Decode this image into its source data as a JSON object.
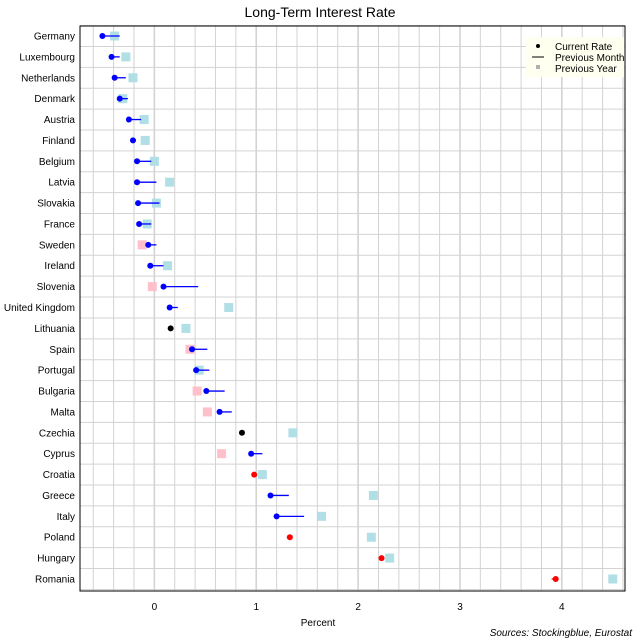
{
  "chart_data": {
    "type": "dot",
    "title": "Long-Term Interest Rate",
    "xlabel": "Percent",
    "source": "Sources: Stockingblue, Eurostat",
    "xlim": [
      -0.73,
      4.62
    ],
    "xticks": [
      0,
      1,
      2,
      3,
      4
    ],
    "grid": true,
    "legend_position": "top-right",
    "legend": [
      "Current Rate",
      "Previous Month",
      "Previous Year"
    ],
    "colors": {
      "decrease": "#0000ff",
      "increase": "#ff0000",
      "unchanged": "#000000",
      "prev_year_higher": "#b0dfe5",
      "prev_year_lower": "#ffc0cb",
      "grid": "#d3d3d3"
    },
    "categories": [
      "Germany",
      "Luxembourg",
      "Netherlands",
      "Denmark",
      "Austria",
      "Finland",
      "Belgium",
      "Latvia",
      "Slovakia",
      "France",
      "Sweden",
      "Ireland",
      "Slovenia",
      "United Kingdom",
      "Lithuania",
      "Spain",
      "Portugal",
      "Bulgaria",
      "Malta",
      "Czechia",
      "Cyprus",
      "Croatia",
      "Greece",
      "Italy",
      "Poland",
      "Hungary",
      "Romania"
    ],
    "series": [
      {
        "name": "Current Rate",
        "values": [
          -0.51,
          -0.42,
          -0.39,
          -0.34,
          -0.25,
          -0.21,
          -0.17,
          -0.17,
          -0.16,
          -0.15,
          -0.06,
          -0.04,
          0.09,
          0.15,
          0.16,
          0.37,
          0.41,
          0.51,
          0.64,
          0.86,
          0.95,
          0.98,
          1.14,
          1.2,
          1.33,
          2.23,
          3.94
        ]
      },
      {
        "name": "Previous Month",
        "values": [
          -0.34,
          -0.34,
          -0.28,
          -0.26,
          -0.13,
          -0.18,
          -0.03,
          0.02,
          0.05,
          -0.03,
          0.02,
          0.09,
          0.43,
          0.23,
          0.16,
          0.52,
          0.54,
          0.69,
          0.76,
          0.86,
          1.06,
          0.96,
          1.32,
          1.47,
          1.3,
          2.2,
          3.9
        ]
      },
      {
        "name": "Previous Year",
        "values": [
          -0.39,
          -0.28,
          -0.21,
          -0.31,
          -0.1,
          -0.09,
          0.0,
          0.15,
          0.02,
          -0.07,
          -0.12,
          0.13,
          -0.02,
          0.73,
          0.31,
          0.35,
          0.44,
          0.42,
          0.52,
          1.36,
          0.66,
          1.06,
          2.15,
          1.64,
          2.13,
          2.31,
          4.5
        ]
      }
    ]
  }
}
